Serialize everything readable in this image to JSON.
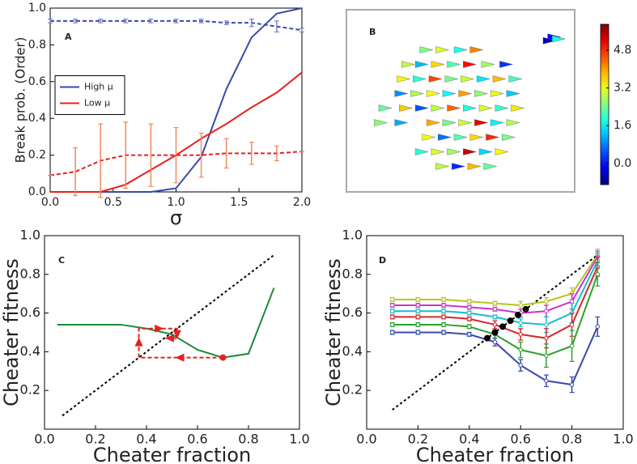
{
  "chart_data": [
    {
      "type": "line",
      "panel_label": "A",
      "xlabel": "σ",
      "ylabel": "Break prob. (Order)",
      "xlim": [
        0,
        2
      ],
      "ylim": [
        0,
        1
      ],
      "xticks": [
        {
          "value": 0,
          "label": "0.0"
        },
        0.5,
        {
          "value": 1,
          "label": "1.0"
        },
        1.5,
        {
          "value": 2,
          "label": "2.0"
        }
      ],
      "yticks": [
        {
          "value": 0,
          "label": "0.0"
        },
        0.2,
        0.4,
        0.6,
        0.8,
        {
          "value": 1,
          "label": "1.0"
        }
      ],
      "legend": "center left",
      "x": [
        0,
        0.2,
        0.4,
        0.6,
        0.8,
        1.0,
        1.2,
        1.4,
        1.6,
        1.8,
        2.0
      ],
      "series": [
        {
          "name": "High μ",
          "color": "#3a4aa8",
          "style": "solid",
          "values": [
            0,
            0,
            0,
            0,
            0,
            0.02,
            0.19,
            0.56,
            0.84,
            0.97,
            1
          ]
        },
        {
          "name": "Low μ",
          "color": "#e8201c",
          "style": "solid",
          "values": [
            0,
            0,
            0,
            0.04,
            0.12,
            0.2,
            0.29,
            0.37,
            0.46,
            0.54,
            0.65
          ]
        },
        {
          "color": "#3a4aa8",
          "style": "dashed",
          "values": [
            0.93,
            0.93,
            0.93,
            0.93,
            0.93,
            0.93,
            0.93,
            0.92,
            0.92,
            0.9,
            0.88
          ],
          "errors": [
            0.01,
            0.01,
            0.01,
            0.01,
            0.01,
            0.01,
            0.01,
            0.01,
            0.02,
            0.03,
            0.01
          ],
          "error_color": "#7a84c8"
        },
        {
          "color": "#e8201c",
          "style": "dashed",
          "values": [
            0.09,
            0.11,
            0.17,
            0.2,
            0.2,
            0.2,
            0.2,
            0.21,
            0.21,
            0.21,
            0.22
          ],
          "errors": [
            0,
            0.13,
            0.2,
            0.18,
            0.17,
            0.15,
            0.12,
            0.08,
            0.06,
            0.04,
            0
          ],
          "error_color": "#f08a60"
        }
      ]
    },
    {
      "type": "scatter",
      "panel_label": "B",
      "colormap": "jet",
      "clim": [
        -0.9,
        5.9
      ],
      "cticks": [
        {
          "value": 0,
          "label": "0.0"
        },
        1.6,
        3.2,
        4.8
      ],
      "x": [
        0.35,
        0.42,
        0.5,
        0.57,
        0.27,
        0.33,
        0.4,
        0.47,
        0.54,
        0.62,
        0.7,
        0.25,
        0.32,
        0.39,
        0.46,
        0.53,
        0.6,
        0.67,
        0.74,
        0.24,
        0.31,
        0.38,
        0.45,
        0.52,
        0.59,
        0.66,
        0.73,
        0.17,
        0.26,
        0.33,
        0.4,
        0.47,
        0.54,
        0.61,
        0.68,
        0.75,
        0.15,
        0.24,
        0.38,
        0.45,
        0.52,
        0.59,
        0.66,
        0.73,
        0.36,
        0.43,
        0.5,
        0.57,
        0.64,
        0.71,
        0.33,
        0.4,
        0.47,
        0.54,
        0.61,
        0.68,
        0.42,
        0.49,
        0.56,
        0.63,
        0.91,
        0.89,
        0.93
      ],
      "y": [
        0.22,
        0.22,
        0.22,
        0.22,
        0.3,
        0.3,
        0.3,
        0.3,
        0.3,
        0.3,
        0.3,
        0.38,
        0.38,
        0.38,
        0.38,
        0.38,
        0.38,
        0.38,
        0.38,
        0.46,
        0.46,
        0.46,
        0.46,
        0.46,
        0.46,
        0.46,
        0.46,
        0.54,
        0.54,
        0.54,
        0.54,
        0.54,
        0.54,
        0.54,
        0.54,
        0.54,
        0.62,
        0.62,
        0.62,
        0.62,
        0.62,
        0.62,
        0.62,
        0.62,
        0.7,
        0.7,
        0.7,
        0.7,
        0.7,
        0.7,
        0.78,
        0.78,
        0.78,
        0.78,
        0.78,
        0.78,
        0.86,
        0.86,
        0.86,
        0.86,
        0.15,
        0.17,
        0.16
      ],
      "values": [
        2.5,
        3.1,
        1.8,
        4.2,
        2.9,
        1.2,
        3.6,
        2.2,
        5.0,
        2.7,
        0.3,
        3.4,
        1.9,
        4.6,
        2.4,
        3.0,
        1.5,
        3.8,
        2.1,
        0.9,
        2.8,
        3.3,
        1.7,
        4.0,
        2.6,
        3.2,
        1.3,
        2.3,
        3.7,
        0.5,
        2.9,
        4.4,
        1.8,
        3.1,
        2.0,
        3.5,
        2.6,
        1.1,
        3.9,
        2.4,
        3.0,
        5.2,
        1.6,
        2.8,
        3.3,
        0.7,
        2.2,
        3.6,
        4.8,
        2.5,
        1.9,
        3.1,
        2.7,
        5.4,
        1.4,
        3.4,
        2.9,
        0.2,
        3.8,
        2.3,
        0.0,
        -0.5,
        1.8
      ]
    },
    {
      "type": "line",
      "panel_label": "C",
      "xlabel": "Cheater fraction",
      "ylabel": "Cheater fitness",
      "xlim": [
        0,
        1
      ],
      "ylim": [
        0,
        1
      ],
      "xticks": [
        {
          "value": 0,
          "label": "0.0"
        },
        0.2,
        0.4,
        0.6,
        0.8,
        {
          "value": 1,
          "label": "1.0"
        }
      ],
      "yticks": [
        0.2,
        0.4,
        0.6,
        0.8,
        {
          "value": 1,
          "label": "1.0"
        }
      ],
      "series": [
        {
          "color": "#000000",
          "style": "dotted",
          "x": [
            0.07,
            0.9
          ],
          "values": [
            0.07,
            0.9
          ]
        },
        {
          "color": "#1f8a3a",
          "style": "solid",
          "x": [
            0.05,
            0.1,
            0.2,
            0.3,
            0.4,
            0.5,
            0.6,
            0.7,
            0.8,
            0.9
          ],
          "values": [
            0.54,
            0.54,
            0.54,
            0.54,
            0.52,
            0.49,
            0.41,
            0.37,
            0.39,
            0.73
          ]
        },
        {
          "color": "#e8201c",
          "style": "dashed",
          "arrows": true,
          "x": [
            0.7,
            0.37,
            0.37,
            0.52,
            0.52,
            0.47
          ],
          "values": [
            0.37,
            0.37,
            0.52,
            0.52,
            0.47,
            0.47
          ]
        },
        {
          "color": "#e8201c",
          "style": "points",
          "x": [
            0.7
          ],
          "values": [
            0.37
          ]
        }
      ]
    },
    {
      "type": "line",
      "panel_label": "D",
      "xlabel": "Cheater fraction",
      "ylabel": "Cheater fitness",
      "xlim": [
        0,
        1
      ],
      "ylim": [
        0,
        1
      ],
      "xticks": [
        {
          "value": 0,
          "label": "0.0"
        },
        0.2,
        0.4,
        0.6,
        0.8,
        {
          "value": 1,
          "label": "1.0"
        }
      ],
      "yticks": [
        0.2,
        0.4,
        0.6,
        0.8,
        {
          "value": 1,
          "label": "1.0"
        }
      ],
      "x": [
        0.1,
        0.2,
        0.3,
        0.4,
        0.5,
        0.6,
        0.7,
        0.8,
        0.9
      ],
      "series": [
        {
          "color": "#000000",
          "style": "dotted",
          "x": [
            0.1,
            0.9
          ],
          "values": [
            0.1,
            0.9
          ]
        },
        {
          "color": "#b8c41e",
          "style": "solid",
          "markers": true,
          "values": [
            0.67,
            0.67,
            0.67,
            0.66,
            0.65,
            0.64,
            0.66,
            0.7,
            0.9
          ],
          "errors": [
            0.01,
            0.01,
            0.01,
            0.01,
            0.01,
            0.02,
            0.02,
            0.03,
            0.03
          ]
        },
        {
          "color": "#cc33cc",
          "style": "solid",
          "markers": true,
          "values": [
            0.64,
            0.64,
            0.64,
            0.63,
            0.62,
            0.6,
            0.61,
            0.66,
            0.89
          ],
          "errors": [
            0.01,
            0.01,
            0.01,
            0.01,
            0.01,
            0.02,
            0.03,
            0.04,
            0.03
          ]
        },
        {
          "color": "#17becf",
          "style": "solid",
          "markers": true,
          "values": [
            0.61,
            0.61,
            0.61,
            0.6,
            0.58,
            0.55,
            0.54,
            0.6,
            0.87
          ],
          "errors": [
            0.01,
            0.01,
            0.01,
            0.01,
            0.01,
            0.02,
            0.04,
            0.05,
            0.04
          ]
        },
        {
          "color": "#d62728",
          "style": "solid",
          "markers": true,
          "values": [
            0.58,
            0.58,
            0.58,
            0.57,
            0.54,
            0.49,
            0.47,
            0.54,
            0.84
          ],
          "errors": [
            0.01,
            0.01,
            0.01,
            0.01,
            0.02,
            0.03,
            0.05,
            0.06,
            0.05
          ]
        },
        {
          "color": "#2ca02c",
          "style": "solid",
          "markers": true,
          "values": [
            0.54,
            0.54,
            0.54,
            0.53,
            0.49,
            0.41,
            0.38,
            0.43,
            0.8
          ],
          "errors": [
            0.01,
            0.01,
            0.01,
            0.01,
            0.02,
            0.04,
            0.06,
            0.08,
            0.06
          ]
        },
        {
          "color": "#3949ab",
          "style": "solid",
          "markers": true,
          "values": [
            0.5,
            0.5,
            0.5,
            0.49,
            0.45,
            0.33,
            0.25,
            0.23,
            0.53
          ],
          "errors": [
            0.01,
            0.01,
            0.01,
            0.01,
            0.02,
            0.03,
            0.03,
            0.04,
            0.05
          ]
        },
        {
          "color": "#000000",
          "style": "points",
          "x": [
            0.47,
            0.5,
            0.53,
            0.56,
            0.59,
            0.62
          ],
          "values": [
            0.47,
            0.5,
            0.53,
            0.56,
            0.59,
            0.62
          ]
        }
      ]
    }
  ]
}
